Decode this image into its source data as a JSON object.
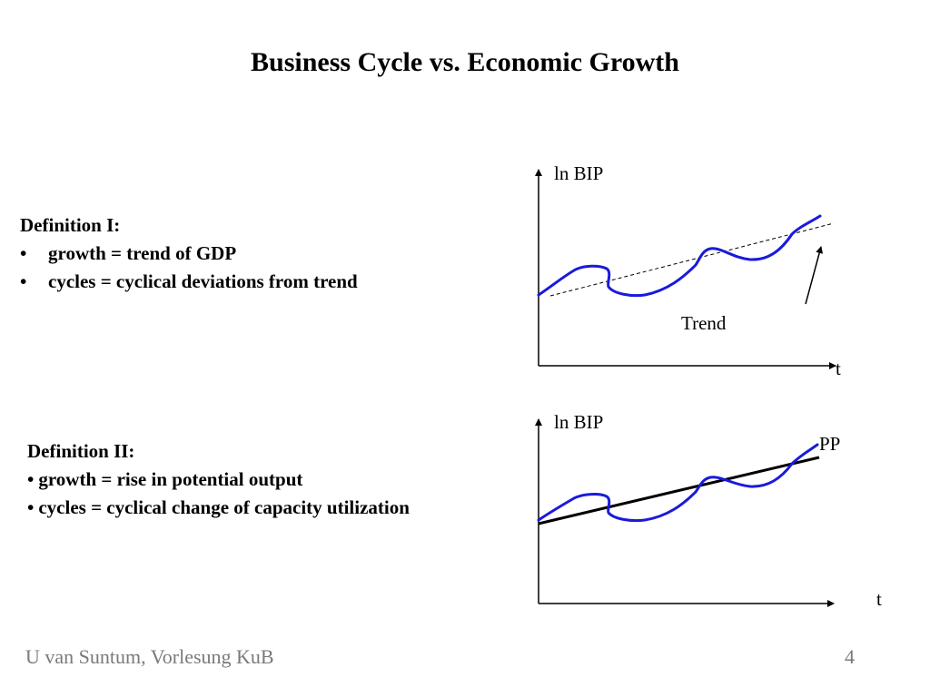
{
  "slide": {
    "title": "Business Cycle vs. Economic Growth",
    "definition1": {
      "heading": "Definition I:",
      "bullets": [
        "growth = trend of GDP",
        "cycles = cyclical deviations from trend"
      ],
      "bullet_glyph": "•"
    },
    "definition2": {
      "heading": "Definition II:",
      "bullets": [
        "growth = rise in potential output",
        "cycles = cyclical change of capacity utilization"
      ],
      "bullet_glyph": "•"
    },
    "diagram1": {
      "y_label": "ln BIP",
      "x_label": "t",
      "annotation": "Trend"
    },
    "diagram2": {
      "y_label": "ln BIP",
      "x_label": "t",
      "line_label": "PP"
    },
    "footer": {
      "author": "U van Suntum, Vorlesung KuB",
      "page_number": "4"
    },
    "colors": {
      "curve": "#1a1adb",
      "axes": "#000000",
      "footer_text": "#7a7a7a"
    }
  }
}
